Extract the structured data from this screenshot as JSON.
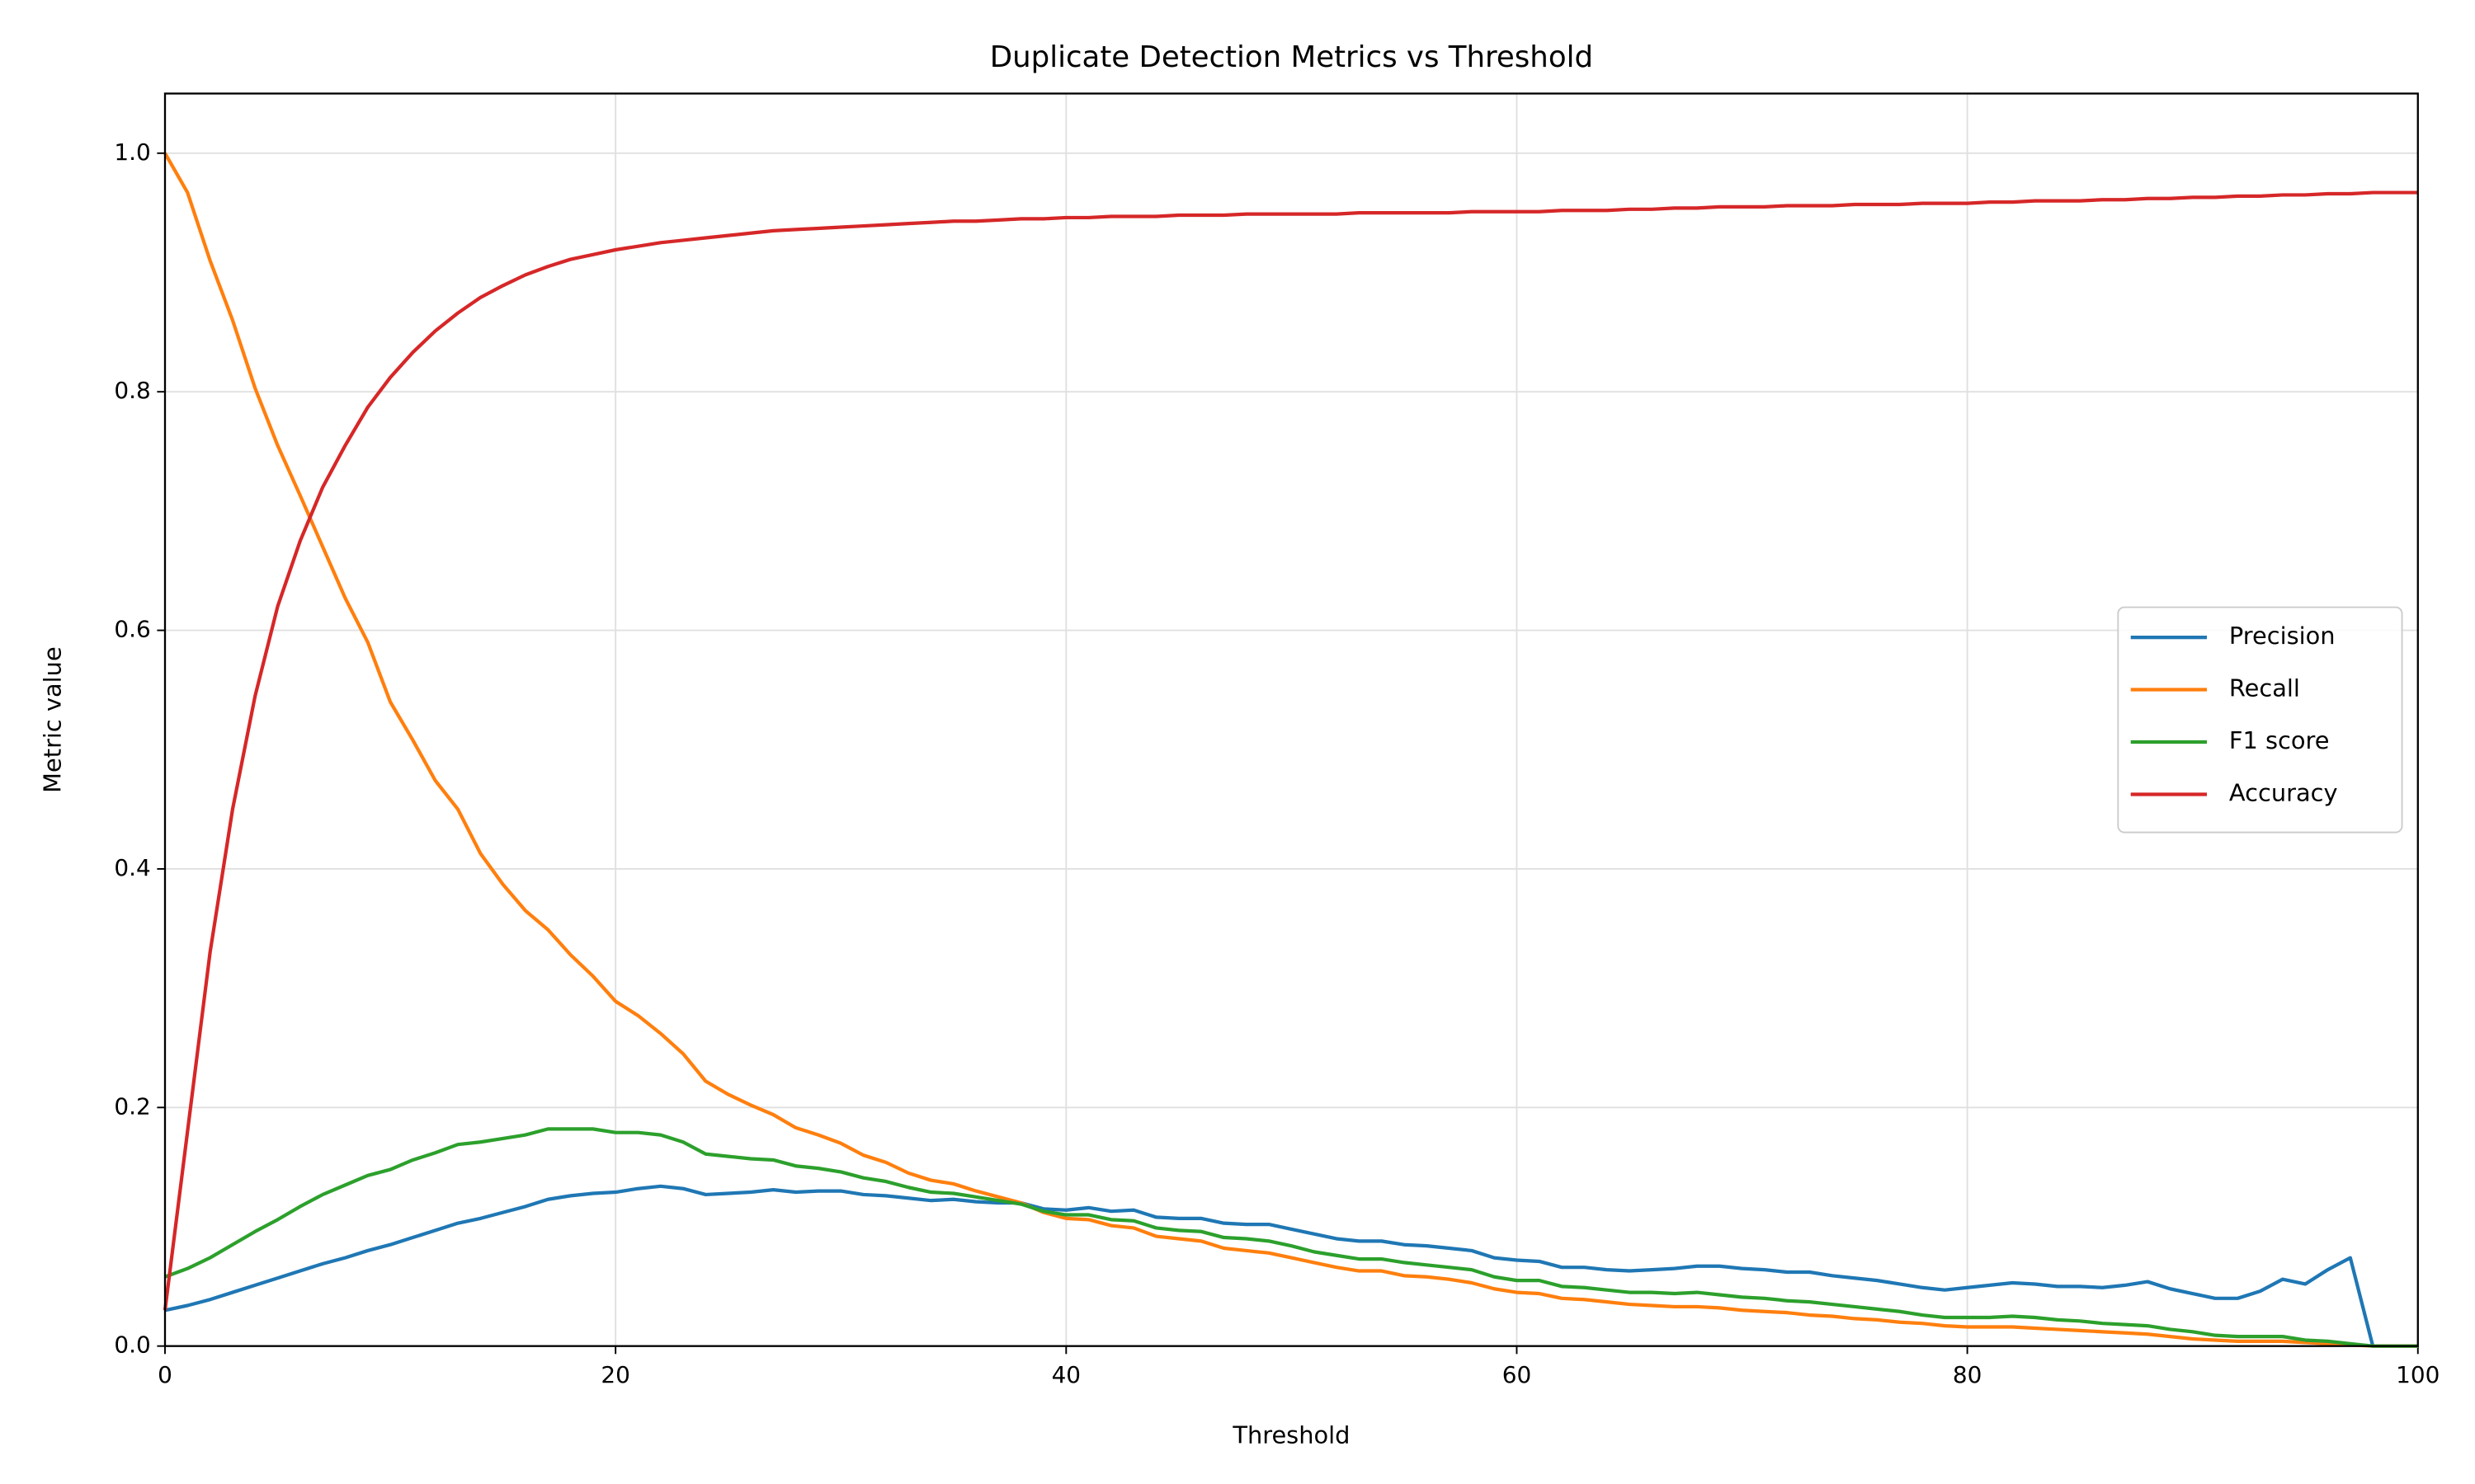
{
  "chart_data": {
    "type": "line",
    "title": "Duplicate Detection Metrics vs Threshold",
    "xlabel": "Threshold",
    "ylabel": "Metric value",
    "x": [
      0,
      1,
      2,
      3,
      4,
      5,
      6,
      7,
      8,
      9,
      10,
      11,
      12,
      13,
      14,
      15,
      16,
      17,
      18,
      19,
      20,
      21,
      22,
      23,
      24,
      25,
      26,
      27,
      28,
      29,
      30,
      31,
      32,
      33,
      34,
      35,
      36,
      37,
      38,
      39,
      40,
      41,
      42,
      43,
      44,
      45,
      46,
      47,
      48,
      49,
      50,
      51,
      52,
      53,
      54,
      55,
      56,
      57,
      58,
      59,
      60,
      61,
      62,
      63,
      64,
      65,
      66,
      67,
      68,
      69,
      70,
      71,
      72,
      73,
      74,
      75,
      76,
      77,
      78,
      79,
      80,
      81,
      82,
      83,
      84,
      85,
      86,
      87,
      88,
      89,
      90,
      91,
      92,
      93,
      94,
      95,
      96,
      97,
      98,
      99,
      100
    ],
    "series": [
      {
        "name": "Precision",
        "color": "#1f77b4",
        "values": [
          0.03,
          0.034,
          0.039,
          0.045,
          0.051,
          0.057,
          0.063,
          0.069,
          0.074,
          0.08,
          0.085,
          0.091,
          0.097,
          0.103,
          0.107,
          0.112,
          0.117,
          0.123,
          0.126,
          0.128,
          0.129,
          0.132,
          0.134,
          0.132,
          0.127,
          0.128,
          0.129,
          0.131,
          0.129,
          0.13,
          0.13,
          0.127,
          0.126,
          0.124,
          0.122,
          0.123,
          0.121,
          0.12,
          0.12,
          0.115,
          0.114,
          0.116,
          0.113,
          0.114,
          0.108,
          0.107,
          0.107,
          0.103,
          0.102,
          0.102,
          0.098,
          0.094,
          0.09,
          0.088,
          0.088,
          0.085,
          0.084,
          0.082,
          0.08,
          0.074,
          0.072,
          0.071,
          0.066,
          0.066,
          0.064,
          0.063,
          0.064,
          0.065,
          0.067,
          0.067,
          0.065,
          0.064,
          0.062,
          0.062,
          0.059,
          0.057,
          0.055,
          0.052,
          0.049,
          0.047,
          0.049,
          0.051,
          0.053,
          0.052,
          0.05,
          0.05,
          0.049,
          0.051,
          0.054,
          0.048,
          0.044,
          0.04,
          0.04,
          0.046,
          0.056,
          0.052,
          0.064,
          0.074,
          0,
          0,
          0
        ]
      },
      {
        "name": "Recall",
        "color": "#ff7f0e",
        "values": [
          1.0,
          0.967,
          0.91,
          0.86,
          0.803,
          0.755,
          0.713,
          0.67,
          0.627,
          0.59,
          0.54,
          0.508,
          0.474,
          0.45,
          0.413,
          0.387,
          0.365,
          0.349,
          0.328,
          0.31,
          0.289,
          0.277,
          0.262,
          0.245,
          0.222,
          0.211,
          0.202,
          0.194,
          0.183,
          0.177,
          0.17,
          0.16,
          0.154,
          0.145,
          0.139,
          0.136,
          0.13,
          0.125,
          0.12,
          0.112,
          0.107,
          0.106,
          0.101,
          0.099,
          0.092,
          0.09,
          0.088,
          0.082,
          0.08,
          0.078,
          0.074,
          0.07,
          0.066,
          0.063,
          0.063,
          0.059,
          0.058,
          0.056,
          0.053,
          0.048,
          0.045,
          0.044,
          0.04,
          0.039,
          0.037,
          0.035,
          0.034,
          0.033,
          0.033,
          0.032,
          0.03,
          0.029,
          0.028,
          0.026,
          0.025,
          0.023,
          0.022,
          0.02,
          0.019,
          0.017,
          0.016,
          0.016,
          0.016,
          0.015,
          0.014,
          0.013,
          0.012,
          0.011,
          0.01,
          0.008,
          0.006,
          0.005,
          0.004,
          0.004,
          0.004,
          0.003,
          0.002,
          0.001,
          0,
          0,
          0
        ]
      },
      {
        "name": "F1 score",
        "color": "#2ca02c",
        "values": [
          0.058,
          0.065,
          0.074,
          0.085,
          0.096,
          0.106,
          0.117,
          0.127,
          0.135,
          0.143,
          0.148,
          0.156,
          0.162,
          0.169,
          0.171,
          0.174,
          0.177,
          0.182,
          0.182,
          0.182,
          0.179,
          0.179,
          0.177,
          0.171,
          0.161,
          0.159,
          0.157,
          0.156,
          0.151,
          0.149,
          0.146,
          0.141,
          0.138,
          0.133,
          0.129,
          0.128,
          0.125,
          0.122,
          0.119,
          0.113,
          0.11,
          0.11,
          0.106,
          0.105,
          0.099,
          0.097,
          0.096,
          0.091,
          0.09,
          0.088,
          0.084,
          0.079,
          0.076,
          0.073,
          0.073,
          0.07,
          0.068,
          0.066,
          0.064,
          0.058,
          0.055,
          0.055,
          0.05,
          0.049,
          0.047,
          0.045,
          0.045,
          0.044,
          0.045,
          0.043,
          0.041,
          0.04,
          0.038,
          0.037,
          0.035,
          0.033,
          0.031,
          0.029,
          0.026,
          0.024,
          0.024,
          0.024,
          0.025,
          0.024,
          0.022,
          0.021,
          0.019,
          0.018,
          0.017,
          0.014,
          0.012,
          0.009,
          0.008,
          0.008,
          0.008,
          0.005,
          0.004,
          0.002,
          0,
          0,
          0
        ]
      },
      {
        "name": "Accuracy",
        "color": "#d62728",
        "values": [
          0.03,
          0.18,
          0.33,
          0.45,
          0.545,
          0.62,
          0.675,
          0.72,
          0.755,
          0.787,
          0.812,
          0.833,
          0.851,
          0.866,
          0.879,
          0.889,
          0.898,
          0.905,
          0.911,
          0.915,
          0.919,
          0.922,
          0.925,
          0.927,
          0.929,
          0.931,
          0.933,
          0.935,
          0.936,
          0.937,
          0.938,
          0.939,
          0.94,
          0.941,
          0.942,
          0.943,
          0.943,
          0.944,
          0.945,
          0.945,
          0.946,
          0.946,
          0.947,
          0.947,
          0.947,
          0.948,
          0.948,
          0.948,
          0.949,
          0.949,
          0.949,
          0.949,
          0.949,
          0.95,
          0.95,
          0.95,
          0.95,
          0.95,
          0.951,
          0.951,
          0.951,
          0.951,
          0.952,
          0.952,
          0.952,
          0.953,
          0.953,
          0.954,
          0.954,
          0.955,
          0.955,
          0.955,
          0.956,
          0.956,
          0.956,
          0.957,
          0.957,
          0.957,
          0.958,
          0.958,
          0.958,
          0.959,
          0.959,
          0.96,
          0.96,
          0.96,
          0.961,
          0.961,
          0.962,
          0.962,
          0.963,
          0.963,
          0.964,
          0.964,
          0.965,
          0.965,
          0.966,
          0.966,
          0.967,
          0.967,
          0.967
        ]
      }
    ],
    "xlim": [
      0,
      100
    ],
    "ylim": [
      0,
      1.05
    ],
    "xticks": [
      0,
      20,
      40,
      60,
      80,
      100
    ],
    "yticks": [
      {
        "value": 0,
        "label": "0.0"
      },
      0.2,
      0.4,
      0.6,
      0.8,
      {
        "value": 1,
        "label": "1.0"
      }
    ],
    "grid": true,
    "legend": "right"
  }
}
